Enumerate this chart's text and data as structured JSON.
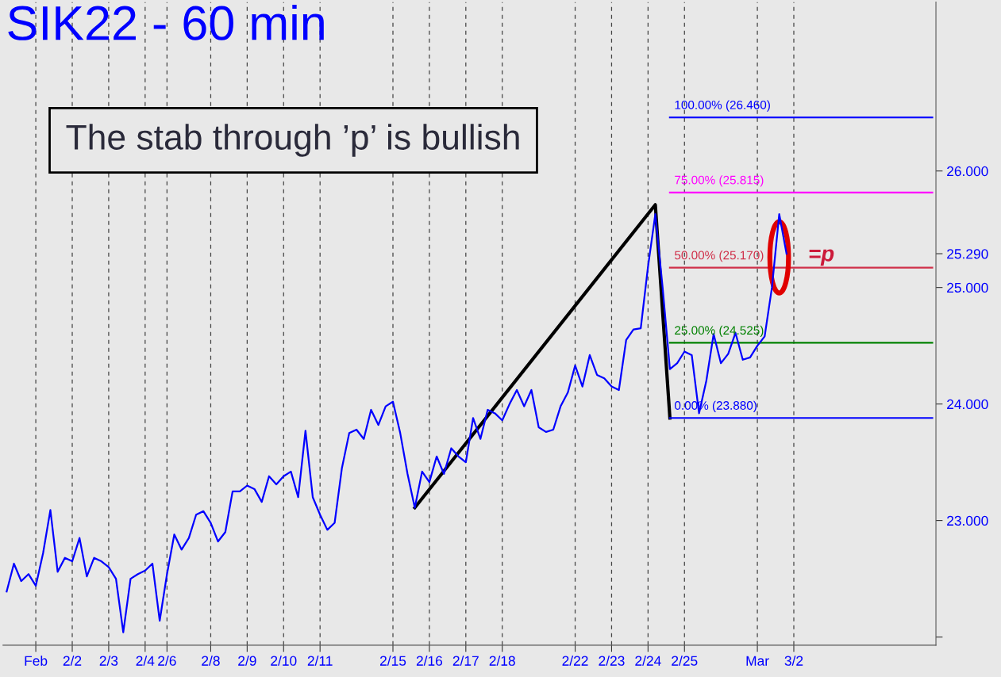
{
  "chart_data": {
    "type": "line",
    "title": "SIK22 - 60 min",
    "categories": [
      null,
      null,
      null,
      null,
      "Feb",
      null,
      null,
      null,
      null,
      "2/2",
      null,
      null,
      null,
      null,
      "2/3",
      null,
      null,
      null,
      null,
      "2/4",
      null,
      null,
      "2/6",
      null,
      null,
      null,
      null,
      null,
      "2/8",
      null,
      null,
      null,
      null,
      "2/9",
      null,
      null,
      null,
      null,
      "2/10",
      null,
      null,
      null,
      null,
      "2/11",
      null,
      null,
      null,
      null,
      null,
      null,
      null,
      null,
      null,
      "2/15",
      null,
      null,
      null,
      null,
      "2/16",
      null,
      null,
      null,
      null,
      "2/17",
      null,
      null,
      null,
      null,
      "2/18",
      null,
      null,
      null,
      null,
      null,
      null,
      null,
      null,
      null,
      "2/22",
      null,
      null,
      null,
      null,
      "2/23",
      null,
      null,
      null,
      null,
      "2/24",
      null,
      null,
      null,
      null,
      "2/25",
      null,
      null,
      null,
      null,
      null,
      null,
      null,
      null,
      null,
      "Mar",
      null,
      null,
      null,
      null,
      "3/2",
      null,
      null,
      null,
      null,
      null,
      null,
      null,
      null,
      null,
      null,
      null,
      null,
      null,
      null,
      null,
      null,
      null,
      null,
      null
    ],
    "ylim": [
      21.93,
      27.45
    ],
    "yticks": [
      {
        "value": 22,
        "label": null
      },
      {
        "value": 23,
        "label": "23.000"
      },
      {
        "value": 24,
        "label": "24.000"
      },
      {
        "value": 25,
        "label": "25.000"
      },
      {
        "value": 25.29,
        "label": "25.290"
      },
      {
        "value": 26,
        "label": "26.000"
      }
    ],
    "grid": "x",
    "legend": false,
    "marker": "none",
    "line_style": "solid",
    "series": [
      {
        "color": "#0000ff",
        "values": [
          22.39,
          22.63,
          22.48,
          22.54,
          22.44,
          22.72,
          23.09,
          22.56,
          22.68,
          22.65,
          22.85,
          22.52,
          22.68,
          22.65,
          22.6,
          22.5,
          22.04,
          22.5,
          22.54,
          22.57,
          22.63,
          22.14,
          22.54,
          22.88,
          22.75,
          22.85,
          23.05,
          23.08,
          22.98,
          22.82,
          22.9,
          23.25,
          23.25,
          23.3,
          23.27,
          23.16,
          23.38,
          23.31,
          23.38,
          23.42,
          23.2,
          23.77,
          23.2,
          23.05,
          22.92,
          22.98,
          23.45,
          23.75,
          23.78,
          23.7,
          23.95,
          23.82,
          23.98,
          24.02,
          23.75,
          23.4,
          23.11,
          23.42,
          23.33,
          23.55,
          23.4,
          23.62,
          23.55,
          23.5,
          23.88,
          23.7,
          23.95,
          23.92,
          23.86,
          24.0,
          24.12,
          23.98,
          24.12,
          23.8,
          23.76,
          23.78,
          23.98,
          24.1,
          24.33,
          24.15,
          24.42,
          24.25,
          24.22,
          24.15,
          24.12,
          24.55,
          24.64,
          24.65,
          25.18,
          25.63,
          25.0,
          24.3,
          24.35,
          24.45,
          24.42,
          23.92,
          24.2,
          24.6,
          24.35,
          24.43,
          24.61,
          24.38,
          24.4,
          24.5,
          24.58,
          25.0,
          25.63,
          25.29,
          null,
          null,
          null,
          null,
          null,
          null,
          null,
          null,
          null,
          null,
          null,
          null,
          null,
          null,
          null,
          null,
          null,
          null,
          null,
          null
        ]
      },
      {
        "color": "#000000",
        "values": [
          null,
          null,
          null,
          null,
          null,
          null,
          null,
          null,
          null,
          null,
          null,
          null,
          null,
          null,
          null,
          null,
          null,
          null,
          null,
          null,
          null,
          null,
          null,
          null,
          null,
          null,
          null,
          null,
          null,
          null,
          null,
          null,
          null,
          null,
          null,
          null,
          null,
          null,
          null,
          null,
          null,
          null,
          null,
          null,
          null,
          null,
          null,
          null,
          null,
          null,
          null,
          null,
          null,
          null,
          null,
          null,
          23.11,
          null,
          null,
          null,
          null,
          null,
          null,
          null,
          null,
          null,
          null,
          null,
          null,
          null,
          null,
          null,
          null,
          null,
          null,
          null,
          null,
          null,
          null,
          null,
          null,
          null,
          null,
          null,
          null,
          null,
          null,
          null,
          null,
          25.71,
          null,
          23.88,
          null,
          null,
          null,
          null,
          null,
          null,
          null,
          null,
          null,
          null,
          null,
          null,
          null,
          null,
          null,
          null,
          null,
          null,
          null,
          null,
          null,
          null,
          null,
          null,
          null,
          null,
          null,
          null,
          null,
          null,
          null,
          null,
          null,
          null,
          null,
          null
        ]
      },
      {
        "name": "100.00% (26.460)",
        "color": "#0000ff",
        "values": [
          null,
          null,
          null,
          null,
          null,
          null,
          null,
          null,
          null,
          null,
          null,
          null,
          null,
          null,
          null,
          null,
          null,
          null,
          null,
          null,
          null,
          null,
          null,
          null,
          null,
          null,
          null,
          null,
          null,
          null,
          null,
          null,
          null,
          null,
          null,
          null,
          null,
          null,
          null,
          null,
          null,
          null,
          null,
          null,
          null,
          null,
          null,
          null,
          null,
          null,
          null,
          null,
          null,
          null,
          null,
          null,
          null,
          null,
          null,
          null,
          null,
          null,
          null,
          null,
          null,
          null,
          null,
          null,
          null,
          null,
          null,
          null,
          null,
          null,
          null,
          null,
          null,
          null,
          null,
          null,
          null,
          null,
          null,
          null,
          null,
          null,
          null,
          null,
          null,
          null,
          null,
          26.46,
          26.46,
          26.46,
          26.46,
          26.46,
          26.46,
          26.46,
          26.46,
          26.46,
          26.46,
          26.46,
          26.46,
          26.46,
          26.46,
          26.46,
          26.46,
          26.46,
          26.46,
          26.46,
          26.46,
          26.46,
          26.46,
          26.46,
          26.46,
          26.46,
          26.46,
          26.46,
          26.46,
          26.46,
          26.46,
          26.46,
          26.46,
          26.46,
          26.46,
          26.46,
          26.46,
          26.46
        ]
      },
      {
        "name": "75.00% (25.815)",
        "color": "#ff00ff",
        "values": [
          null,
          null,
          null,
          null,
          null,
          null,
          null,
          null,
          null,
          null,
          null,
          null,
          null,
          null,
          null,
          null,
          null,
          null,
          null,
          null,
          null,
          null,
          null,
          null,
          null,
          null,
          null,
          null,
          null,
          null,
          null,
          null,
          null,
          null,
          null,
          null,
          null,
          null,
          null,
          null,
          null,
          null,
          null,
          null,
          null,
          null,
          null,
          null,
          null,
          null,
          null,
          null,
          null,
          null,
          null,
          null,
          null,
          null,
          null,
          null,
          null,
          null,
          null,
          null,
          null,
          null,
          null,
          null,
          null,
          null,
          null,
          null,
          null,
          null,
          null,
          null,
          null,
          null,
          null,
          null,
          null,
          null,
          null,
          null,
          null,
          null,
          null,
          null,
          null,
          null,
          null,
          25.815,
          25.815,
          25.815,
          25.815,
          25.815,
          25.815,
          25.815,
          25.815,
          25.815,
          25.815,
          25.815,
          25.815,
          25.815,
          25.815,
          25.815,
          25.815,
          25.815,
          25.815,
          25.815,
          25.815,
          25.815,
          25.815,
          25.815,
          25.815,
          25.815,
          25.815,
          25.815,
          25.815,
          25.815,
          25.815,
          25.815,
          25.815,
          25.815,
          25.815,
          25.815,
          25.815,
          25.815
        ]
      },
      {
        "name": "50.00% (25.170)",
        "color": "#d0304a",
        "values": [
          null,
          null,
          null,
          null,
          null,
          null,
          null,
          null,
          null,
          null,
          null,
          null,
          null,
          null,
          null,
          null,
          null,
          null,
          null,
          null,
          null,
          null,
          null,
          null,
          null,
          null,
          null,
          null,
          null,
          null,
          null,
          null,
          null,
          null,
          null,
          null,
          null,
          null,
          null,
          null,
          null,
          null,
          null,
          null,
          null,
          null,
          null,
          null,
          null,
          null,
          null,
          null,
          null,
          null,
          null,
          null,
          null,
          null,
          null,
          null,
          null,
          null,
          null,
          null,
          null,
          null,
          null,
          null,
          null,
          null,
          null,
          null,
          null,
          null,
          null,
          null,
          null,
          null,
          null,
          null,
          null,
          null,
          null,
          null,
          null,
          null,
          null,
          null,
          null,
          null,
          null,
          25.17,
          25.17,
          25.17,
          25.17,
          25.17,
          25.17,
          25.17,
          25.17,
          25.17,
          25.17,
          25.17,
          25.17,
          25.17,
          25.17,
          25.17,
          25.17,
          25.17,
          25.17,
          25.17,
          25.17,
          25.17,
          25.17,
          25.17,
          25.17,
          25.17,
          25.17,
          25.17,
          25.17,
          25.17,
          25.17,
          25.17,
          25.17,
          25.17,
          25.17,
          25.17,
          25.17,
          25.17
        ]
      },
      {
        "name": "25.00% (24.525)",
        "color": "#008000",
        "values": [
          null,
          null,
          null,
          null,
          null,
          null,
          null,
          null,
          null,
          null,
          null,
          null,
          null,
          null,
          null,
          null,
          null,
          null,
          null,
          null,
          null,
          null,
          null,
          null,
          null,
          null,
          null,
          null,
          null,
          null,
          null,
          null,
          null,
          null,
          null,
          null,
          null,
          null,
          null,
          null,
          null,
          null,
          null,
          null,
          null,
          null,
          null,
          null,
          null,
          null,
          null,
          null,
          null,
          null,
          null,
          null,
          null,
          null,
          null,
          null,
          null,
          null,
          null,
          null,
          null,
          null,
          null,
          null,
          null,
          null,
          null,
          null,
          null,
          null,
          null,
          null,
          null,
          null,
          null,
          null,
          null,
          null,
          null,
          null,
          null,
          null,
          null,
          null,
          null,
          null,
          null,
          24.525,
          24.525,
          24.525,
          24.525,
          24.525,
          24.525,
          24.525,
          24.525,
          24.525,
          24.525,
          24.525,
          24.525,
          24.525,
          24.525,
          24.525,
          24.525,
          24.525,
          24.525,
          24.525,
          24.525,
          24.525,
          24.525,
          24.525,
          24.525,
          24.525,
          24.525,
          24.525,
          24.525,
          24.525,
          24.525,
          24.525,
          24.525,
          24.525,
          24.525,
          24.525,
          24.525,
          24.525
        ]
      },
      {
        "name": "0.00% (23.880)",
        "color": "#0000ff",
        "values": [
          null,
          null,
          null,
          null,
          null,
          null,
          null,
          null,
          null,
          null,
          null,
          null,
          null,
          null,
          null,
          null,
          null,
          null,
          null,
          null,
          null,
          null,
          null,
          null,
          null,
          null,
          null,
          null,
          null,
          null,
          null,
          null,
          null,
          null,
          null,
          null,
          null,
          null,
          null,
          null,
          null,
          null,
          null,
          null,
          null,
          null,
          null,
          null,
          null,
          null,
          null,
          null,
          null,
          null,
          null,
          null,
          null,
          null,
          null,
          null,
          null,
          null,
          null,
          null,
          null,
          null,
          null,
          null,
          null,
          null,
          null,
          null,
          null,
          null,
          null,
          null,
          null,
          null,
          null,
          null,
          null,
          null,
          null,
          null,
          null,
          null,
          null,
          null,
          null,
          null,
          null,
          23.88,
          23.88,
          23.88,
          23.88,
          23.88,
          23.88,
          23.88,
          23.88,
          23.88,
          23.88,
          23.88,
          23.88,
          23.88,
          23.88,
          23.88,
          23.88,
          23.88,
          23.88,
          23.88,
          23.88,
          23.88,
          23.88,
          23.88,
          23.88,
          23.88,
          23.88,
          23.88,
          23.88,
          23.88,
          23.88,
          23.88,
          23.88,
          23.88,
          23.88,
          23.88,
          23.88,
          23.88
        ]
      }
    ],
    "annotations": [
      "The stab through ’p’ is bullish",
      "=p"
    ]
  }
}
